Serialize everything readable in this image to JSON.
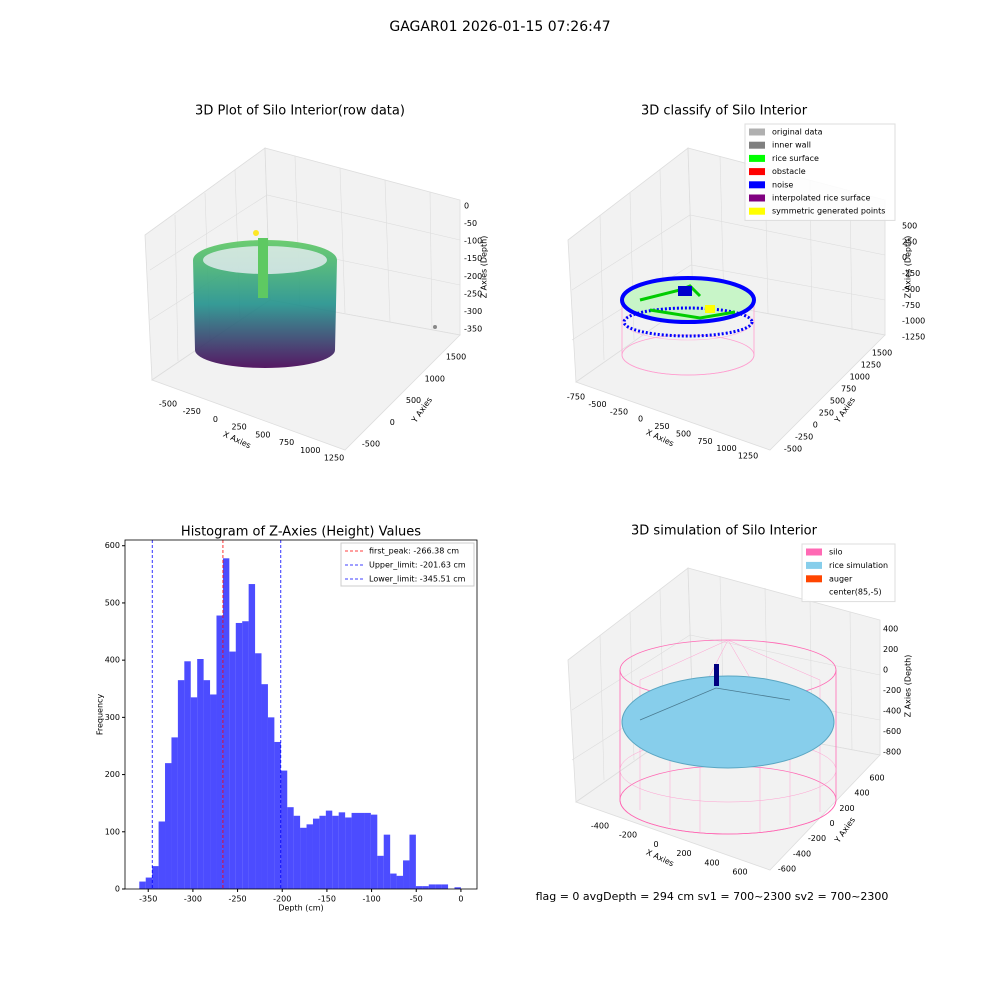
{
  "suptitle": "GAGAR01 2026-01-15 07:26:47",
  "footer": "flag = 0     avgDepth = 294 cm  sv1 = 700~2300  sv2 = 700~2300",
  "chart_data": [
    {
      "type": "scatter3d",
      "title": "3D Plot of Silo Interior(row data)",
      "xlabel": "X Axies",
      "ylabel": "Y Axies",
      "zlabel": "Z Axies (Depth)",
      "xticks": [
        -500,
        -250,
        0,
        250,
        500,
        750,
        1000,
        1250
      ],
      "yticks": [
        -500,
        0,
        500,
        1000,
        1500
      ],
      "zticks": [
        0,
        -50,
        -100,
        -150,
        -200,
        -250,
        -300,
        -350
      ]
    },
    {
      "type": "scatter3d",
      "title": "3D classify of Silo Interior",
      "xlabel": "X Axies",
      "ylabel": "Y Axies",
      "zlabel": "Z Axies (Depth)",
      "xticks": [
        -750,
        -500,
        -250,
        0,
        250,
        500,
        750,
        1000,
        1250
      ],
      "yticks": [
        -500,
        -250,
        0,
        250,
        500,
        750,
        1000,
        1250,
        1500
      ],
      "zticks": [
        500,
        250,
        0,
        -250,
        -500,
        -750,
        -1000,
        -1250
      ],
      "legend": [
        {
          "name": "original data",
          "color": "#b0b0b0"
        },
        {
          "name": "inner wall",
          "color": "#808080"
        },
        {
          "name": "rice surface",
          "color": "#00ff00"
        },
        {
          "name": "obstacle",
          "color": "#ff0000"
        },
        {
          "name": "noise",
          "color": "#0000ff"
        },
        {
          "name": "interpolated rice surface",
          "color": "#800080"
        },
        {
          "name": "symmetric generated points",
          "color": "#ffff00"
        }
      ]
    },
    {
      "type": "histogram",
      "title": "Histogram of Z-Axies (Height) Values",
      "xlabel": "Depth (cm)",
      "ylabel": "Frequency",
      "color": "blue",
      "bins": [
        -360,
        -352.8,
        -345.6,
        -338.4,
        -331.2,
        -324,
        -316.8,
        -309.6,
        -302.4,
        -295.2,
        -288,
        -280.8,
        -273.6,
        -266.4,
        -259.2,
        -252,
        -244.8,
        -237.6,
        -230.4,
        -223.2,
        -216,
        -208.8,
        -201.6,
        -194.4,
        -187.2,
        -180,
        -172.8,
        -165.6,
        -158.4,
        -151.2,
        -144,
        -136.8,
        -129.6,
        -122.4,
        -115.2,
        -108,
        -100.8,
        -93.6,
        -86.4,
        -79.2,
        -72,
        -64.8,
        -57.6,
        -50.4,
        -43.2,
        -36,
        -28.8,
        -21.6,
        -14.4,
        -7.2,
        0
      ],
      "counts": [
        13,
        20,
        40,
        118,
        220,
        265,
        365,
        398,
        335,
        402,
        365,
        340,
        478,
        578,
        415,
        465,
        468,
        533,
        412,
        358,
        300,
        257,
        207,
        143,
        128,
        107,
        113,
        123,
        128,
        137,
        128,
        134,
        125,
        133,
        133,
        133,
        130,
        58,
        95,
        27,
        23,
        50,
        95,
        5,
        5,
        8,
        8,
        8,
        0,
        3
      ],
      "xlim": [
        -376,
        18
      ],
      "ylim": [
        0,
        610
      ],
      "xticks": [
        -350,
        -300,
        -250,
        -200,
        -150,
        -100,
        -50,
        0
      ],
      "yticks": [
        0,
        100,
        200,
        300,
        400,
        500,
        600
      ],
      "vlines": [
        {
          "value": -266.38,
          "label": "first_peak: -266.38 cm",
          "color": "red"
        },
        {
          "value": -201.63,
          "label": "Upper_limit: -201.63 cm",
          "color": "blue"
        },
        {
          "value": -345.51,
          "label": "Lower_limit: -345.51 cm",
          "color": "blue"
        }
      ]
    },
    {
      "type": "surface3d",
      "title": "3D simulation of Silo Interior",
      "xlabel": "X Axies",
      "ylabel": "Y Axies",
      "zlabel": "Z Axies (Depth)",
      "xticks": [
        -400,
        -200,
        0,
        200,
        400,
        600
      ],
      "yticks": [
        -600,
        -400,
        -200,
        0,
        200,
        400,
        600
      ],
      "zticks": [
        400,
        200,
        0,
        -200,
        -400,
        -600,
        -800
      ],
      "legend": [
        {
          "name": "silo",
          "color": "#ff69b4"
        },
        {
          "name": "rice simulation",
          "color": "#87ceeb"
        },
        {
          "name": "auger",
          "color": "#ff4500"
        },
        {
          "name": "center(85,-5)",
          "color": "#ffffff"
        }
      ]
    }
  ]
}
